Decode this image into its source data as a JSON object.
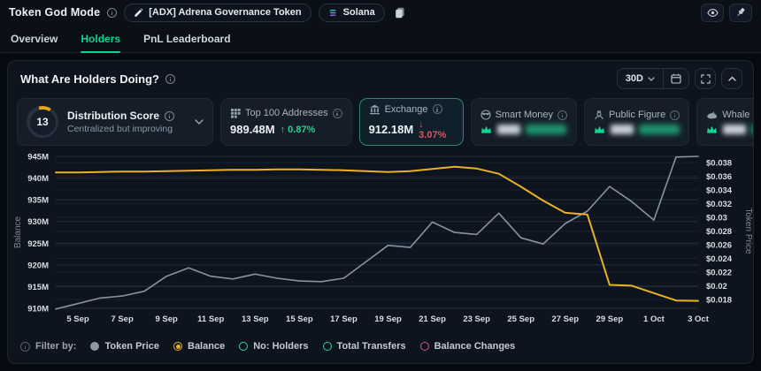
{
  "theme": {
    "accent_green": "#10d18d",
    "positive_color": "#27cf8e",
    "negative_color": "#e4505b",
    "balance_line_color": "#e9b125",
    "price_line_color": "#8793a0",
    "selected_card_border": "#2e8573",
    "locked_crown_color": "#14d491"
  },
  "icons": [
    "info-icon",
    "pencil-icon",
    "solana-icon",
    "copy-icon",
    "eye-icon",
    "pin-icon",
    "chevron-down-icon",
    "calendar-icon",
    "fullscreen-icon",
    "chevron-up-icon",
    "addresses-icon",
    "exchange-icon",
    "smart-money-icon",
    "public-figure-icon",
    "whale-icon",
    "crown-icon"
  ],
  "topbar": {
    "title": "Token God Mode",
    "token": "[ADX] Adrena Governance Token",
    "chain": "Solana"
  },
  "tabs": [
    {
      "label": "Overview",
      "active": false
    },
    {
      "label": "Holders",
      "active": true
    },
    {
      "label": "PnL Leaderboard",
      "active": false
    }
  ],
  "panel": {
    "title": "What Are Holders Doing?",
    "range": "30D"
  },
  "cards": {
    "score_card": {
      "score": 13,
      "label": "Distribution Score",
      "sublabel": "Centralized but improving",
      "arc_color": "#e6a51f",
      "track_color": "#273140"
    },
    "stat_cards": [
      {
        "label": "Top 100 Addresses",
        "value": "989.48M",
        "change": "↑ 0.87%",
        "direction": "up",
        "selected": false,
        "locked": false
      },
      {
        "label": "Exchange",
        "value": "912.18M",
        "change": "↓ 3.07%",
        "direction": "down",
        "selected": true,
        "locked": false
      },
      {
        "label": "Smart Money",
        "locked": true
      },
      {
        "label": "Public Figure",
        "locked": true
      },
      {
        "label": "Whale",
        "locked": true
      }
    ]
  },
  "chart_data": {
    "type": "line",
    "x": [
      "4 Sep",
      "5 Sep",
      "6 Sep",
      "7 Sep",
      "8 Sep",
      "9 Sep",
      "10 Sep",
      "11 Sep",
      "12 Sep",
      "13 Sep",
      "14 Sep",
      "15 Sep",
      "16 Sep",
      "17 Sep",
      "18 Sep",
      "19 Sep",
      "20 Sep",
      "21 Sep",
      "22 Sep",
      "23 Sep",
      "24 Sep",
      "25 Sep",
      "26 Sep",
      "27 Sep",
      "28 Sep",
      "29 Sep",
      "30 Sep",
      "1 Oct",
      "2 Oct",
      "3 Oct"
    ],
    "x_labels_shown": [
      "5 Sep",
      "7 Sep",
      "9 Sep",
      "11 Sep",
      "13 Sep",
      "15 Sep",
      "17 Sep",
      "19 Sep",
      "21 Sep",
      "23 Sep",
      "25 Sep",
      "27 Sep",
      "29 Sep",
      "1 Oct",
      "3 Oct"
    ],
    "series": [
      {
        "name": "Balance",
        "axis": "left",
        "color": "#e9b125",
        "unit": "M tokens",
        "values": [
          941.3,
          941.3,
          941.4,
          941.5,
          941.5,
          941.6,
          941.7,
          941.8,
          941.9,
          941.9,
          942.0,
          942.0,
          941.9,
          941.8,
          941.6,
          941.4,
          941.6,
          942.1,
          942.6,
          942.2,
          941.0,
          938.0,
          934.8,
          932.0,
          931.6,
          915.4,
          915.2,
          913.5,
          911.8,
          911.7
        ]
      },
      {
        "name": "Token Price",
        "axis": "right",
        "color": "#8793a0",
        "unit": "USD",
        "values": [
          0.0166,
          0.0174,
          0.0182,
          0.0185,
          0.0192,
          0.0214,
          0.0226,
          0.0214,
          0.021,
          0.0217,
          0.0211,
          0.0207,
          0.0206,
          0.0211,
          0.0235,
          0.0259,
          0.0256,
          0.0293,
          0.0278,
          0.0275,
          0.0306,
          0.027,
          0.0261,
          0.0291,
          0.0309,
          0.0345,
          0.0323,
          0.0296,
          0.0388,
          0.0389
        ]
      }
    ],
    "left_axis": {
      "label": "Balance",
      "min": 910,
      "max": 945,
      "tick_step": 5,
      "ticks": [
        "945M",
        "940M",
        "935M",
        "930M",
        "925M",
        "920M",
        "915M",
        "910M"
      ]
    },
    "right_axis": {
      "label": "Token Price",
      "min": 0.018,
      "max": 0.038,
      "tick_step": 0.002,
      "ticks": [
        "$0.038",
        "$0.036",
        "$0.034",
        "$0.032",
        "$0.03",
        "$0.028",
        "$0.026",
        "$0.024",
        "$0.022",
        "$0.02",
        "$0.018"
      ]
    },
    "grid": true,
    "legend_position": "bottom"
  },
  "filter_bar": {
    "label": "Filter by:",
    "items": [
      {
        "label": "Token Price",
        "style": "filled",
        "color": "#8e99a6"
      },
      {
        "label": "Balance",
        "style": "radio",
        "color": "#e9b125"
      },
      {
        "label": "No: Holders",
        "style": "hollow",
        "color": "#2bd4a4"
      },
      {
        "label": "Total Transfers",
        "style": "hollow",
        "color": "#2bd4a4"
      },
      {
        "label": "Balance Changes",
        "style": "hollow",
        "color": "#d1559c"
      }
    ]
  }
}
